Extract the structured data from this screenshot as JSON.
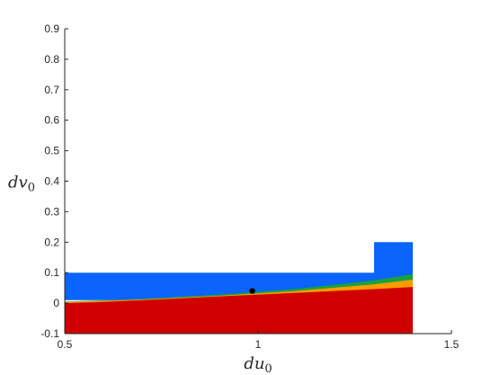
{
  "chart_data": {
    "type": "area",
    "xlabel": "du",
    "xlabel_sub": "0",
    "ylabel": "dv",
    "ylabel_sub": "0",
    "xlim": [
      0.5,
      1.5
    ],
    "ylim": [
      -0.1,
      0.9
    ],
    "xticks": [
      "0.5",
      "1",
      "1.5"
    ],
    "xtick_values": [
      0.5,
      1,
      1.5
    ],
    "yticks": [
      "-0.1",
      "0",
      "0.1",
      "0.2",
      "0.3",
      "0.4",
      "0.5",
      "0.6",
      "0.7",
      "0.8",
      "0.9"
    ],
    "ytick_values": [
      -0.1,
      0,
      0.1,
      0.2,
      0.3,
      0.4,
      0.5,
      0.6,
      0.7,
      0.8,
      0.9
    ],
    "grid": false,
    "colors": {
      "blue": "#0b64fb",
      "green": "#18a33a",
      "orange": "#ff9a00",
      "red": "#d00000",
      "point": "#000000",
      "axis": "#262626"
    },
    "regions": [
      {
        "color": "blue",
        "polygon": [
          [
            0.5,
            0.01
          ],
          [
            0.5,
            0.1
          ],
          [
            1.3,
            0.1
          ],
          [
            1.3,
            0.2
          ],
          [
            1.4,
            0.2
          ],
          [
            1.4,
            0.1
          ],
          [
            1.4,
            0.01
          ]
        ]
      },
      {
        "color": "green",
        "polygon": [
          [
            0.5,
            0.005
          ],
          [
            0.7,
            0.014
          ],
          [
            0.9,
            0.028
          ],
          [
            1.1,
            0.047
          ],
          [
            1.3,
            0.075
          ],
          [
            1.4,
            0.095
          ],
          [
            1.4,
            -0.07
          ],
          [
            0.5,
            -0.07
          ]
        ]
      },
      {
        "color": "orange",
        "polygon": [
          [
            0.5,
            0.004
          ],
          [
            0.7,
            0.012
          ],
          [
            0.9,
            0.024
          ],
          [
            1.1,
            0.04
          ],
          [
            1.3,
            0.062
          ],
          [
            1.4,
            0.077
          ],
          [
            1.4,
            -0.07
          ],
          [
            0.5,
            -0.07
          ]
        ]
      },
      {
        "color": "red",
        "polygon": [
          [
            0.5,
            0.0
          ],
          [
            0.6,
            0.004
          ],
          [
            0.7,
            0.01
          ],
          [
            0.8,
            0.016
          ],
          [
            0.9,
            0.022
          ],
          [
            1.0,
            0.028
          ],
          [
            1.1,
            0.034
          ],
          [
            1.2,
            0.04
          ],
          [
            1.3,
            0.046
          ],
          [
            1.4,
            0.053
          ],
          [
            1.4,
            -0.07
          ],
          [
            0.5,
            -0.07
          ]
        ]
      },
      {
        "color": "red",
        "polygon": [
          [
            0.5,
            -0.005
          ],
          [
            0.7,
            -0.006
          ],
          [
            0.9,
            -0.012
          ],
          [
            1.1,
            -0.022
          ],
          [
            1.3,
            -0.04
          ],
          [
            1.4,
            -0.058
          ],
          [
            1.4,
            -0.1
          ],
          [
            0.5,
            -0.1
          ]
        ]
      }
    ],
    "point": {
      "x": 0.985,
      "y": 0.04
    }
  }
}
